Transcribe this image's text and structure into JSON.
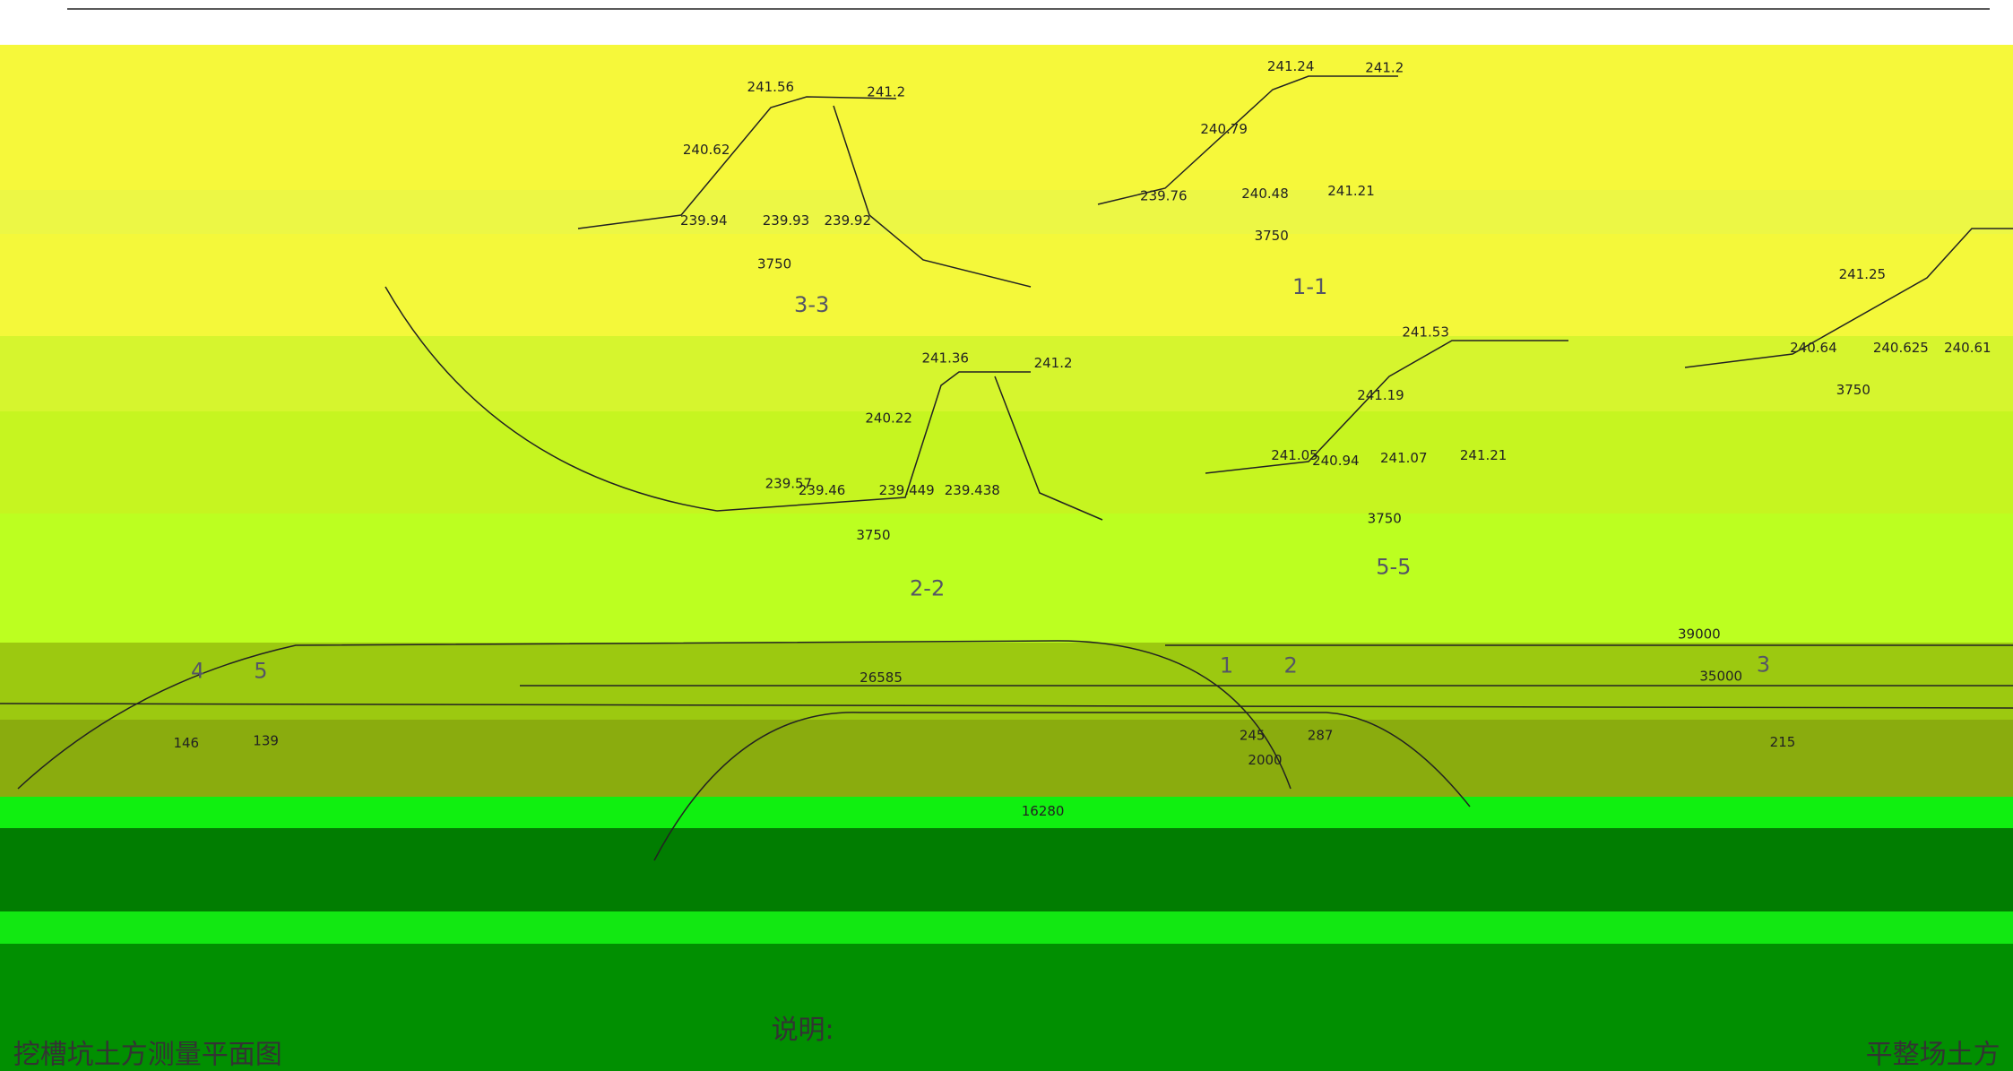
{
  "sections": [
    {
      "label": "3-3",
      "elevations": [
        "241.56",
        "241.2",
        "240.62",
        "239.94",
        "239.93",
        "239.92"
      ],
      "width": "3750"
    },
    {
      "label": "1-1",
      "elevations": [
        "241.24",
        "241.2",
        "240.79",
        "239.76",
        "240.48",
        "241.21"
      ],
      "width": "3750"
    },
    {
      "label": "2-2",
      "elevations": [
        "241.36",
        "241.2",
        "240.22",
        "239.57",
        "239.46",
        "239.449",
        "239.438"
      ],
      "width": "3750"
    },
    {
      "label": "5-5",
      "elevations": [
        "241.53",
        "241.19",
        "241.05",
        "240.94",
        "241.07",
        "241.21"
      ],
      "width": "3750"
    },
    {
      "elevations": [
        "241.25",
        "240.64",
        "240.625",
        "240.61"
      ],
      "width": "3750"
    }
  ],
  "plan": {
    "title": "挖槽坑土方测量平面图",
    "dimensions": [
      "39000",
      "26585",
      "35000",
      "2000",
      "16280"
    ],
    "markers": [
      "1",
      "2",
      "3",
      "4",
      "5"
    ],
    "points": [
      "245",
      "287",
      "215",
      "146",
      "139"
    ]
  },
  "notes": {
    "heading": "说明:"
  },
  "side_title": "平整场土方"
}
